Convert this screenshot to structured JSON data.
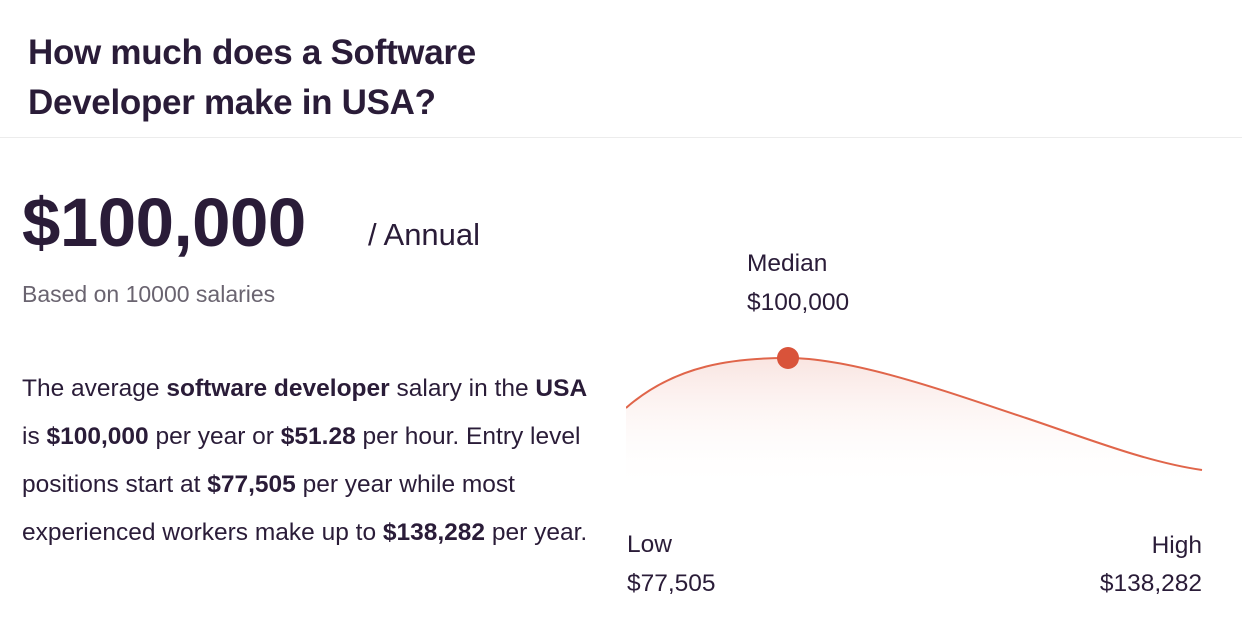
{
  "header": {
    "title": "How much does a Software Developer make in USA?"
  },
  "salary": {
    "amount": "$100,000",
    "period": "/ Annual",
    "based_on": "Based on 10000 salaries"
  },
  "summary": {
    "t1": "The average ",
    "role": "software developer",
    "t2": " salary in the ",
    "country": "USA",
    "t3": " is ",
    "annual": "$100,000",
    "t4": " per year or ",
    "hourly": "$51.28",
    "t5": " per hour. Entry level positions start at ",
    "entry": "$77,505",
    "t6": " per year while most experienced workers make up to ",
    "top": "$138,282",
    "t7": " per year."
  },
  "distribution": {
    "median_label": "Median",
    "median_value": "$100,000",
    "low_label": "Low",
    "low_value": "$77,505",
    "high_label": "High",
    "high_value": "$138,282",
    "colors": {
      "curve": "#e0654a",
      "marker": "#d9533a",
      "fill": "#f9e3df"
    }
  }
}
